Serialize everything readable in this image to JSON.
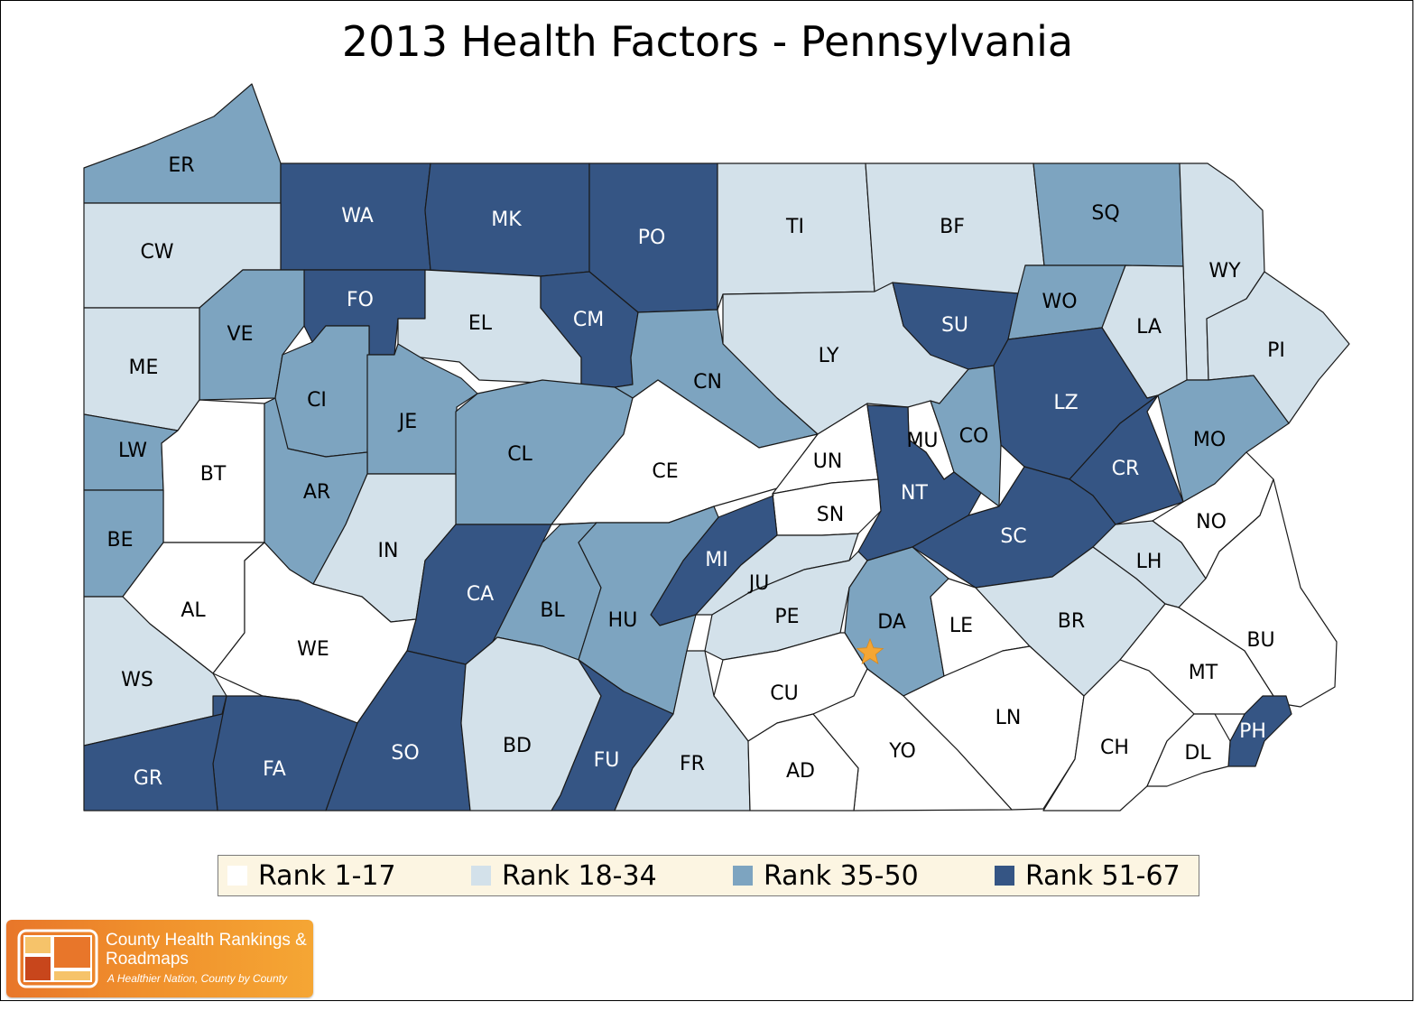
{
  "title": "2013 Health Factors - Pennsylvania",
  "colors": {
    "rank_1_17": "#ffffff",
    "rank_18_34": "#d3e1ea",
    "rank_35_50": "#7da4c0",
    "rank_51_67": "#355584",
    "star": "#f5a634"
  },
  "legend": [
    {
      "label": "Rank 1-17",
      "color": "#ffffff"
    },
    {
      "label": "Rank 18-34",
      "color": "#d3e1ea"
    },
    {
      "label": "Rank 35-50",
      "color": "#7da4c0"
    },
    {
      "label": "Rank 51-67",
      "color": "#355584"
    }
  ],
  "counties": [
    {
      "abbr": "ER",
      "rank_range": "35-50"
    },
    {
      "abbr": "WA",
      "rank_range": "51-67"
    },
    {
      "abbr": "MK",
      "rank_range": "51-67"
    },
    {
      "abbr": "PO",
      "rank_range": "51-67"
    },
    {
      "abbr": "TI",
      "rank_range": "18-34"
    },
    {
      "abbr": "BF",
      "rank_range": "18-34"
    },
    {
      "abbr": "SQ",
      "rank_range": "35-50"
    },
    {
      "abbr": "WY",
      "rank_range": "18-34"
    },
    {
      "abbr": "CW",
      "rank_range": "18-34"
    },
    {
      "abbr": "FO",
      "rank_range": "51-67"
    },
    {
      "abbr": "EL",
      "rank_range": "18-34"
    },
    {
      "abbr": "CM",
      "rank_range": "51-67"
    },
    {
      "abbr": "VE",
      "rank_range": "35-50"
    },
    {
      "abbr": "ME",
      "rank_range": "18-34"
    },
    {
      "abbr": "LY",
      "rank_range": "18-34"
    },
    {
      "abbr": "SU",
      "rank_range": "51-67"
    },
    {
      "abbr": "WO",
      "rank_range": "35-50"
    },
    {
      "abbr": "LA",
      "rank_range": "18-34"
    },
    {
      "abbr": "PI",
      "rank_range": "18-34"
    },
    {
      "abbr": "CI",
      "rank_range": "35-50"
    },
    {
      "abbr": "JE",
      "rank_range": "35-50"
    },
    {
      "abbr": "CN",
      "rank_range": "35-50"
    },
    {
      "abbr": "LZ",
      "rank_range": "51-67"
    },
    {
      "abbr": "LW",
      "rank_range": "35-50"
    },
    {
      "abbr": "BT",
      "rank_range": "1-17"
    },
    {
      "abbr": "CL",
      "rank_range": "35-50"
    },
    {
      "abbr": "CE",
      "rank_range": "1-17"
    },
    {
      "abbr": "MU",
      "rank_range": "1-17"
    },
    {
      "abbr": "CO",
      "rank_range": "35-50"
    },
    {
      "abbr": "MO",
      "rank_range": "35-50"
    },
    {
      "abbr": "UN",
      "rank_range": "1-17"
    },
    {
      "abbr": "CR",
      "rank_range": "51-67"
    },
    {
      "abbr": "AR",
      "rank_range": "35-50"
    },
    {
      "abbr": "NT",
      "rank_range": "51-67"
    },
    {
      "abbr": "SN",
      "rank_range": "1-17"
    },
    {
      "abbr": "NO",
      "rank_range": "1-17"
    },
    {
      "abbr": "BE",
      "rank_range": "35-50"
    },
    {
      "abbr": "IN",
      "rank_range": "18-34"
    },
    {
      "abbr": "SC",
      "rank_range": "51-67"
    },
    {
      "abbr": "MI",
      "rank_range": "51-67"
    },
    {
      "abbr": "LH",
      "rank_range": "18-34"
    },
    {
      "abbr": "JU",
      "rank_range": "18-34"
    },
    {
      "abbr": "CA",
      "rank_range": "51-67"
    },
    {
      "abbr": "AL",
      "rank_range": "1-17"
    },
    {
      "abbr": "BL",
      "rank_range": "35-50"
    },
    {
      "abbr": "PE",
      "rank_range": "18-34"
    },
    {
      "abbr": "HU",
      "rank_range": "35-50"
    },
    {
      "abbr": "DA",
      "rank_range": "35-50"
    },
    {
      "abbr": "LE",
      "rank_range": "1-17"
    },
    {
      "abbr": "BR",
      "rank_range": "18-34"
    },
    {
      "abbr": "BU",
      "rank_range": "1-17"
    },
    {
      "abbr": "WE",
      "rank_range": "1-17"
    },
    {
      "abbr": "MT",
      "rank_range": "1-17"
    },
    {
      "abbr": "WS",
      "rank_range": "18-34"
    },
    {
      "abbr": "CU",
      "rank_range": "1-17"
    },
    {
      "abbr": "LN",
      "rank_range": "1-17"
    },
    {
      "abbr": "PH",
      "rank_range": "51-67"
    },
    {
      "abbr": "SO",
      "rank_range": "51-67"
    },
    {
      "abbr": "BD",
      "rank_range": "18-34"
    },
    {
      "abbr": "YO",
      "rank_range": "1-17"
    },
    {
      "abbr": "CH",
      "rank_range": "1-17"
    },
    {
      "abbr": "DL",
      "rank_range": "1-17"
    },
    {
      "abbr": "FU",
      "rank_range": "51-67"
    },
    {
      "abbr": "FR",
      "rank_range": "18-34"
    },
    {
      "abbr": "AD",
      "rank_range": "1-17"
    },
    {
      "abbr": "FA",
      "rank_range": "51-67"
    },
    {
      "abbr": "GR",
      "rank_range": "51-67"
    }
  ],
  "capital_marker": "star-icon",
  "branding": {
    "name": "County Health Rankings & Roadmaps",
    "tagline": "A Healthier Nation, County by County"
  }
}
